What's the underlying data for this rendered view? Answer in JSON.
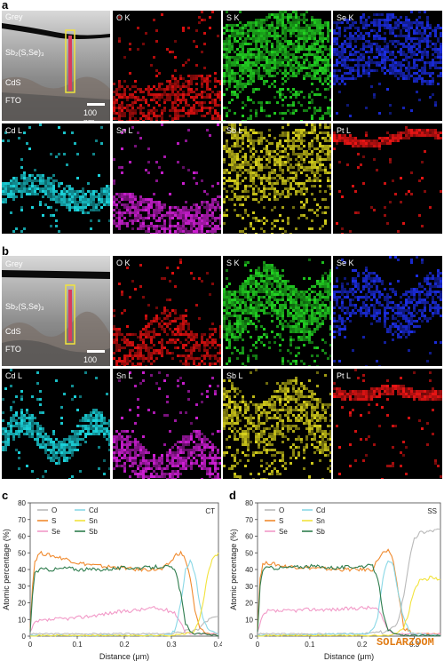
{
  "panels": {
    "a": {
      "letter": "a",
      "grey": {
        "title": "Grey",
        "layer_top": "Sb₂(S,Se)₃",
        "layer_mid": "CdS",
        "layer_bottom": "FTO",
        "scale": "100 nm"
      },
      "maps": [
        {
          "label": "O K",
          "color": "#e01010"
        },
        {
          "label": "S K",
          "color": "#22d322"
        },
        {
          "label": "Se K",
          "color": "#1c2ee6"
        },
        {
          "label": "Cd L",
          "color": "#1cd8e0"
        },
        {
          "label": "Sn L",
          "color": "#d21fd8"
        },
        {
          "label": "Sb L",
          "color": "#d8d21c"
        },
        {
          "label": "Pt L",
          "color": "#f01515"
        }
      ]
    },
    "b": {
      "letter": "b",
      "grey": {
        "title": "Grey",
        "layer_top": "Sb₂(S,Se)₃",
        "layer_mid": "CdS",
        "layer_bottom": "FTO",
        "scale": "100 nm"
      },
      "maps": [
        {
          "label": "O K",
          "color": "#e01010"
        },
        {
          "label": "S K",
          "color": "#22d322"
        },
        {
          "label": "Se K",
          "color": "#1c2ee6"
        },
        {
          "label": "Cd L",
          "color": "#1cd8e0"
        },
        {
          "label": "Sn L",
          "color": "#d21fd8"
        },
        {
          "label": "Sb L",
          "color": "#d8d21c"
        },
        {
          "label": "Pt L",
          "color": "#f01515"
        }
      ]
    },
    "c": {
      "letter": "c"
    },
    "d": {
      "letter": "d"
    }
  },
  "watermark": "SOLARZOOM",
  "chart_data": [
    {
      "type": "line",
      "tag": "CT",
      "xlabel": "Distance (μm)",
      "ylabel": "Atomic percentage (%)",
      "xlim": [
        0,
        0.4
      ],
      "ylim": [
        0,
        80
      ],
      "xticks": [
        "0",
        "0.1",
        "0.2",
        "0.3",
        "0.4"
      ],
      "yticks": [
        "0",
        "10",
        "20",
        "30",
        "40",
        "50",
        "60",
        "70",
        "80"
      ],
      "legend": [
        "O",
        "S",
        "Se",
        "Cd",
        "Sn",
        "Sb"
      ],
      "series": [
        {
          "name": "O",
          "color": "#b9b9b9",
          "x": [
            0,
            0.05,
            0.1,
            0.2,
            0.28,
            0.3,
            0.31,
            0.32,
            0.33,
            0.34,
            0.35,
            0.36,
            0.37,
            0.38,
            0.4
          ],
          "y": [
            1,
            1,
            1,
            1,
            1,
            1,
            2,
            2,
            3,
            3,
            3,
            5,
            8,
            10,
            12
          ]
        },
        {
          "name": "S",
          "color": "#f08a2e",
          "x": [
            0,
            0.005,
            0.01,
            0.02,
            0.05,
            0.08,
            0.1,
            0.15,
            0.2,
            0.22,
            0.25,
            0.28,
            0.3,
            0.31,
            0.32,
            0.33,
            0.34,
            0.35,
            0.36,
            0.37,
            0.38,
            0.4
          ],
          "y": [
            5,
            30,
            45,
            50,
            48,
            46,
            44,
            42,
            41,
            40,
            40,
            40,
            45,
            49,
            50,
            46,
            35,
            15,
            5,
            2,
            1,
            1
          ]
        },
        {
          "name": "Se",
          "color": "#f29ac8",
          "x": [
            0,
            0.01,
            0.02,
            0.05,
            0.1,
            0.15,
            0.2,
            0.24,
            0.26,
            0.28,
            0.3,
            0.31,
            0.32,
            0.33,
            0.34,
            0.36,
            0.4
          ],
          "y": [
            2,
            8,
            9,
            10,
            11,
            13,
            15,
            16,
            17,
            16,
            15,
            13,
            8,
            3,
            1,
            1,
            1
          ]
        },
        {
          "name": "Cd",
          "color": "#8ad8e6",
          "x": [
            0,
            0.28,
            0.3,
            0.31,
            0.32,
            0.33,
            0.34,
            0.35,
            0.36,
            0.37,
            0.38,
            0.4
          ],
          "y": [
            0,
            0,
            1,
            5,
            20,
            40,
            45,
            38,
            20,
            8,
            3,
            1
          ]
        },
        {
          "name": "Sn",
          "color": "#f2e33c",
          "x": [
            0,
            0.3,
            0.33,
            0.35,
            0.36,
            0.37,
            0.38,
            0.39,
            0.4
          ],
          "y": [
            0,
            0,
            1,
            3,
            10,
            25,
            40,
            48,
            50
          ]
        },
        {
          "name": "Sb",
          "color": "#2f7d4e",
          "x": [
            0,
            0.005,
            0.01,
            0.02,
            0.05,
            0.08,
            0.1,
            0.15,
            0.2,
            0.25,
            0.28,
            0.3,
            0.31,
            0.32,
            0.33,
            0.34,
            0.35,
            0.37,
            0.4
          ],
          "y": [
            2,
            25,
            38,
            40,
            40,
            41,
            40,
            40,
            41,
            41,
            42,
            41,
            38,
            25,
            8,
            2,
            1,
            1,
            0
          ]
        }
      ]
    },
    {
      "type": "line",
      "tag": "SS",
      "xlabel": "Distance (μm)",
      "ylabel": "Atomic percentage (%)",
      "xlim": [
        0,
        0.35
      ],
      "ylim": [
        0,
        80
      ],
      "xticks": [
        "0",
        "0.1",
        "0.2",
        "0.3"
      ],
      "yticks": [
        "0",
        "10",
        "20",
        "30",
        "40",
        "50",
        "60",
        "70",
        "80"
      ],
      "legend": [
        "O",
        "S",
        "Se",
        "Cd",
        "Sn",
        "Sb"
      ],
      "series": [
        {
          "name": "O",
          "color": "#b9b9b9",
          "x": [
            0,
            0.2,
            0.23,
            0.25,
            0.26,
            0.27,
            0.28,
            0.29,
            0.3,
            0.31,
            0.33,
            0.35
          ],
          "y": [
            1,
            1,
            2,
            3,
            5,
            10,
            25,
            45,
            58,
            62,
            63,
            64
          ]
        },
        {
          "name": "S",
          "color": "#f08a2e",
          "x": [
            0,
            0.005,
            0.01,
            0.02,
            0.05,
            0.1,
            0.15,
            0.2,
            0.22,
            0.23,
            0.24,
            0.25,
            0.26,
            0.27,
            0.28,
            0.3,
            0.35
          ],
          "y": [
            5,
            35,
            43,
            44,
            42,
            41,
            40,
            40,
            40,
            46,
            50,
            51,
            45,
            25,
            5,
            1,
            1
          ]
        },
        {
          "name": "Se",
          "color": "#f29ac8",
          "x": [
            0,
            0.01,
            0.02,
            0.05,
            0.1,
            0.15,
            0.2,
            0.22,
            0.23,
            0.24,
            0.25,
            0.26,
            0.3,
            0.35
          ],
          "y": [
            2,
            12,
            15,
            15,
            16,
            16,
            17,
            17,
            16,
            10,
            4,
            1,
            1,
            1
          ]
        },
        {
          "name": "Cd",
          "color": "#8ad8e6",
          "x": [
            0,
            0.21,
            0.22,
            0.23,
            0.24,
            0.25,
            0.26,
            0.27,
            0.28,
            0.29,
            0.3,
            0.35
          ],
          "y": [
            0,
            1,
            3,
            12,
            35,
            46,
            42,
            25,
            10,
            3,
            1,
            0
          ]
        },
        {
          "name": "Sn",
          "color": "#f2e33c",
          "x": [
            0,
            0.25,
            0.27,
            0.28,
            0.29,
            0.3,
            0.31,
            0.33,
            0.35
          ],
          "y": [
            0,
            0,
            2,
            5,
            15,
            28,
            33,
            35,
            34
          ]
        },
        {
          "name": "Sb",
          "color": "#2f7d4e",
          "x": [
            0,
            0.005,
            0.01,
            0.02,
            0.05,
            0.1,
            0.15,
            0.2,
            0.22,
            0.23,
            0.24,
            0.25,
            0.26,
            0.28,
            0.35
          ],
          "y": [
            2,
            30,
            40,
            41,
            41,
            42,
            41,
            42,
            42,
            35,
            15,
            4,
            1,
            0,
            0
          ]
        }
      ]
    }
  ]
}
